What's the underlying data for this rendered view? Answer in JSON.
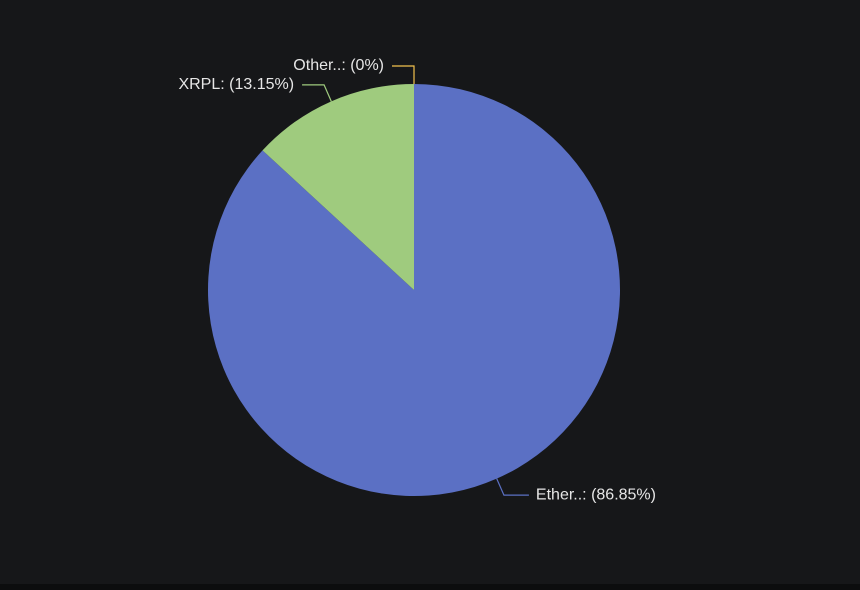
{
  "chart_data": {
    "type": "pie",
    "values": [
      86.85,
      13.15,
      0
    ],
    "value_labels": [
      "Ether..: (86.85%)",
      "XRPL: (13.15%)",
      "Other..: (0%)"
    ],
    "colors": [
      "#5b70c4",
      "#9fcb7e",
      "#f2c14e"
    ]
  }
}
